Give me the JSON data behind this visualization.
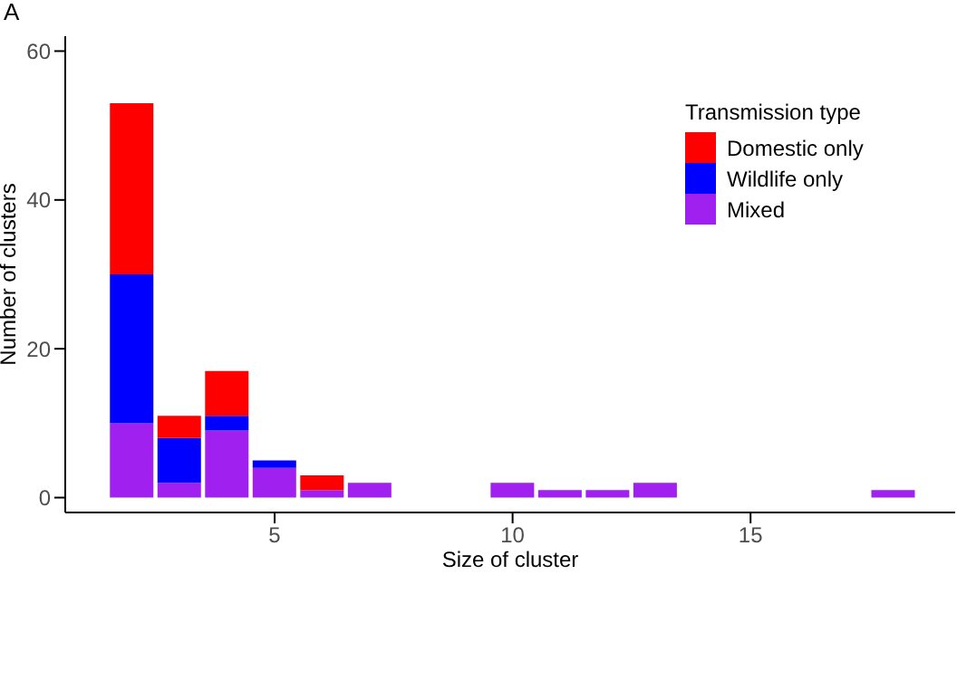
{
  "chart_data": {
    "type": "bar",
    "title": "A",
    "xlabel": "Size of cluster",
    "ylabel": "Number of clusters",
    "legend_title": "Transmission type",
    "stacked": true,
    "x": [
      2,
      3,
      4,
      5,
      6,
      7,
      10,
      11,
      12,
      13,
      18
    ],
    "series": [
      {
        "name": "Mixed",
        "color": "#a020f0",
        "values": [
          10,
          2,
          9,
          4,
          1,
          2,
          2,
          1,
          1,
          2,
          1
        ]
      },
      {
        "name": "Wildlife only",
        "color": "#0000ff",
        "values": [
          20,
          6,
          2,
          1,
          null,
          null,
          null,
          null,
          null,
          null,
          null
        ]
      },
      {
        "name": "Domestic only",
        "color": "#ff0000",
        "values": [
          23,
          3,
          6,
          null,
          2,
          null,
          null,
          null,
          null,
          null,
          null
        ]
      }
    ],
    "xlim": [
      0.6,
      19.3
    ],
    "xticks": [
      5,
      10,
      15
    ],
    "ylim": [
      -2,
      62
    ],
    "yticks": [
      0,
      20,
      40,
      60
    ],
    "grid": false,
    "legend": "top right"
  }
}
